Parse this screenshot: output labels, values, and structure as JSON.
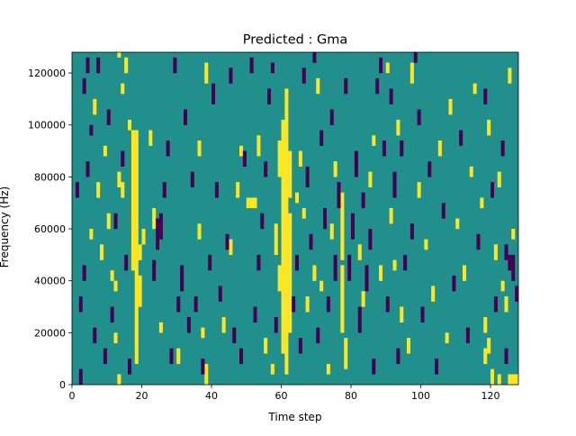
{
  "chart_data": {
    "type": "heatmap",
    "title": "Predicted : Gma",
    "xlabel": "Time step",
    "ylabel": "Frequency (Hz)",
    "xlim": [
      0,
      128
    ],
    "ylim": [
      0,
      128000
    ],
    "x_ticks": [
      {
        "value": 0,
        "label": "0"
      },
      {
        "value": 20,
        "label": "20"
      },
      {
        "value": 40,
        "label": "40"
      },
      {
        "value": 60,
        "label": "60"
      },
      {
        "value": 80,
        "label": "80"
      },
      {
        "value": 100,
        "label": "100"
      },
      {
        "value": 120,
        "label": "120"
      }
    ],
    "y_ticks": [
      {
        "value": 0,
        "label": "0"
      },
      {
        "value": 20000,
        "label": "20000"
      },
      {
        "value": 40000,
        "label": "40000"
      },
      {
        "value": 60000,
        "label": "60000"
      },
      {
        "value": 80000,
        "label": "80000"
      },
      {
        "value": 100000,
        "label": "100000"
      },
      {
        "value": 120000,
        "label": "120000"
      }
    ],
    "grid": {
      "cols": 128,
      "rows": 64,
      "row_height_hz": 2000
    },
    "colormap": "viridis",
    "levels": {
      "low": "#440154",
      "mid": "#21908d",
      "high": "#fde725"
    },
    "background_level": "mid",
    "high_runs": [
      [
        17,
        22,
        48
      ],
      [
        18,
        4,
        48
      ],
      [
        19,
        15,
        20
      ],
      [
        19,
        24,
        26
      ],
      [
        20,
        27,
        29
      ],
      [
        60,
        6,
        50
      ],
      [
        61,
        2,
        56
      ],
      [
        62,
        10,
        32
      ],
      [
        62,
        36,
        44
      ],
      [
        59,
        18,
        22
      ],
      [
        59,
        40,
        46
      ],
      [
        57,
        2,
        3
      ],
      [
        58,
        25,
        30
      ],
      [
        77,
        10,
        22
      ],
      [
        78,
        3,
        8
      ],
      [
        77,
        24,
        36
      ],
      [
        50,
        34,
        35
      ],
      [
        51,
        34,
        35
      ],
      [
        52,
        34,
        35
      ],
      [
        53,
        44,
        47
      ],
      [
        13,
        0,
        1
      ],
      [
        12,
        8,
        9
      ],
      [
        12,
        18,
        19
      ],
      [
        13,
        38,
        40
      ],
      [
        14,
        36,
        38
      ],
      [
        15,
        60,
        62
      ],
      [
        16,
        49,
        50
      ],
      [
        14,
        56,
        57
      ],
      [
        13,
        63,
        63
      ],
      [
        22,
        46,
        48
      ],
      [
        23,
        30,
        33
      ],
      [
        25,
        10,
        11
      ],
      [
        30,
        4,
        6
      ],
      [
        36,
        28,
        30
      ],
      [
        36,
        44,
        46
      ],
      [
        37,
        9,
        10
      ],
      [
        38,
        0,
        3
      ],
      [
        38,
        58,
        61
      ],
      [
        43,
        10,
        12
      ],
      [
        45,
        25,
        27
      ],
      [
        47,
        36,
        38
      ],
      [
        48,
        44,
        45
      ],
      [
        55,
        6,
        8
      ],
      [
        65,
        42,
        44
      ],
      [
        64,
        35,
        36
      ],
      [
        66,
        32,
        33
      ],
      [
        67,
        14,
        16
      ],
      [
        69,
        20,
        22
      ],
      [
        70,
        56,
        58
      ],
      [
        71,
        18,
        19
      ],
      [
        73,
        2,
        3
      ],
      [
        74,
        28,
        30
      ],
      [
        75,
        40,
        42
      ],
      [
        82,
        24,
        26
      ],
      [
        83,
        15,
        17
      ],
      [
        85,
        38,
        40
      ],
      [
        86,
        46,
        47
      ],
      [
        88,
        20,
        22
      ],
      [
        90,
        60,
        61
      ],
      [
        91,
        31,
        33
      ],
      [
        92,
        22,
        23
      ],
      [
        93,
        48,
        50
      ],
      [
        94,
        12,
        14
      ],
      [
        96,
        6,
        8
      ],
      [
        97,
        58,
        61
      ],
      [
        99,
        36,
        38
      ],
      [
        101,
        26,
        27
      ],
      [
        103,
        16,
        18
      ],
      [
        105,
        44,
        46
      ],
      [
        107,
        8,
        9
      ],
      [
        108,
        52,
        54
      ],
      [
        110,
        30,
        31
      ],
      [
        112,
        20,
        22
      ],
      [
        114,
        40,
        41
      ],
      [
        115,
        56,
        57
      ],
      [
        117,
        34,
        35
      ],
      [
        118,
        10,
        12
      ],
      [
        119,
        48,
        50
      ],
      [
        121,
        24,
        26
      ],
      [
        122,
        38,
        40
      ],
      [
        124,
        14,
        16
      ],
      [
        125,
        58,
        60
      ],
      [
        126,
        28,
        29
      ],
      [
        120,
        0,
        2
      ],
      [
        122,
        0,
        1
      ],
      [
        125,
        0,
        1
      ],
      [
        126,
        0,
        1
      ],
      [
        127,
        0,
        1
      ],
      [
        118,
        4,
        6
      ],
      [
        123,
        18,
        19
      ],
      [
        119,
        6,
        8
      ],
      [
        5,
        28,
        29
      ],
      [
        8,
        24,
        26
      ],
      [
        9,
        44,
        45
      ],
      [
        10,
        30,
        32
      ],
      [
        11,
        20,
        21
      ],
      [
        6,
        52,
        54
      ],
      [
        7,
        36,
        38
      ]
    ],
    "low_runs": [
      [
        24,
        26,
        31
      ],
      [
        25,
        28,
        32
      ],
      [
        26,
        36,
        38
      ],
      [
        23,
        20,
        23
      ],
      [
        27,
        44,
        46
      ],
      [
        31,
        18,
        22
      ],
      [
        32,
        50,
        52
      ],
      [
        33,
        10,
        12
      ],
      [
        35,
        14,
        16
      ],
      [
        39,
        22,
        24
      ],
      [
        40,
        54,
        57
      ],
      [
        41,
        36,
        38
      ],
      [
        42,
        16,
        18
      ],
      [
        44,
        26,
        28
      ],
      [
        46,
        8,
        10
      ],
      [
        49,
        42,
        44
      ],
      [
        52,
        12,
        14
      ],
      [
        54,
        30,
        32
      ],
      [
        56,
        54,
        56
      ],
      [
        63,
        14,
        16
      ],
      [
        64,
        22,
        24
      ],
      [
        66,
        58,
        60
      ],
      [
        67,
        38,
        41
      ],
      [
        68,
        26,
        28
      ],
      [
        70,
        8,
        10
      ],
      [
        71,
        46,
        48
      ],
      [
        72,
        30,
        33
      ],
      [
        73,
        14,
        16
      ],
      [
        74,
        50,
        52
      ],
      [
        75,
        20,
        24
      ],
      [
        76,
        34,
        38
      ],
      [
        79,
        20,
        24
      ],
      [
        80,
        28,
        32
      ],
      [
        81,
        40,
        44
      ],
      [
        82,
        10,
        14
      ],
      [
        83,
        34,
        36
      ],
      [
        84,
        18,
        22
      ],
      [
        85,
        26,
        29
      ],
      [
        87,
        56,
        58
      ],
      [
        89,
        44,
        46
      ],
      [
        90,
        14,
        16
      ],
      [
        92,
        36,
        40
      ],
      [
        93,
        4,
        6
      ],
      [
        95,
        22,
        24
      ],
      [
        97,
        28,
        30
      ],
      [
        99,
        50,
        52
      ],
      [
        100,
        12,
        14
      ],
      [
        102,
        40,
        42
      ],
      [
        104,
        2,
        4
      ],
      [
        106,
        32,
        34
      ],
      [
        109,
        18,
        20
      ],
      [
        111,
        46,
        48
      ],
      [
        113,
        8,
        10
      ],
      [
        116,
        26,
        28
      ],
      [
        118,
        54,
        56
      ],
      [
        120,
        36,
        38
      ],
      [
        121,
        14,
        16
      ],
      [
        123,
        44,
        46
      ],
      [
        124,
        4,
        6
      ],
      [
        126,
        20,
        24
      ],
      [
        127,
        16,
        18
      ],
      [
        125,
        22,
        24
      ],
      [
        124,
        24,
        26
      ],
      [
        2,
        0,
        2
      ],
      [
        3,
        20,
        22
      ],
      [
        4,
        40,
        42
      ],
      [
        4,
        60,
        62
      ],
      [
        5,
        48,
        49
      ],
      [
        1,
        36,
        38
      ],
      [
        2,
        14,
        16
      ],
      [
        3,
        56,
        58
      ],
      [
        6,
        8,
        10
      ],
      [
        7,
        60,
        62
      ],
      [
        9,
        4,
        6
      ],
      [
        10,
        50,
        52
      ],
      [
        11,
        12,
        14
      ],
      [
        12,
        30,
        32
      ],
      [
        14,
        42,
        44
      ],
      [
        15,
        22,
        24
      ],
      [
        16,
        2,
        4
      ],
      [
        28,
        4,
        6
      ],
      [
        29,
        60,
        62
      ],
      [
        30,
        14,
        16
      ],
      [
        34,
        38,
        40
      ],
      [
        37,
        2,
        4
      ],
      [
        45,
        58,
        60
      ],
      [
        48,
        4,
        6
      ],
      [
        51,
        60,
        62
      ],
      [
        53,
        22,
        24
      ],
      [
        55,
        40,
        42
      ],
      [
        57,
        60,
        61
      ],
      [
        58,
        10,
        12
      ],
      [
        65,
        6,
        8
      ],
      [
        69,
        62,
        63
      ],
      [
        78,
        56,
        58
      ],
      [
        86,
        2,
        4
      ],
      [
        88,
        60,
        62
      ],
      [
        91,
        54,
        56
      ],
      [
        94,
        44,
        46
      ],
      [
        98,
        62,
        63
      ]
    ]
  }
}
